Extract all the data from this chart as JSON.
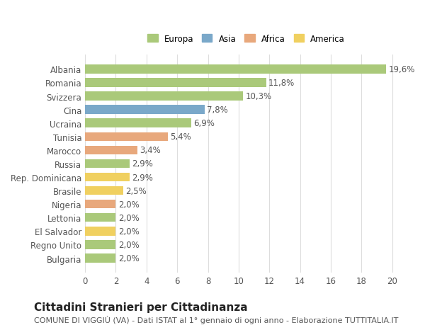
{
  "countries": [
    "Albania",
    "Romania",
    "Svizzera",
    "Cina",
    "Ucraina",
    "Tunisia",
    "Marocco",
    "Russia",
    "Rep. Dominicana",
    "Brasile",
    "Nigeria",
    "Lettonia",
    "El Salvador",
    "Regno Unito",
    "Bulgaria"
  ],
  "values": [
    19.6,
    11.8,
    10.3,
    7.8,
    6.9,
    5.4,
    3.4,
    2.9,
    2.9,
    2.5,
    2.0,
    2.0,
    2.0,
    2.0,
    2.0
  ],
  "labels": [
    "19,6%",
    "11,8%",
    "10,3%",
    "7,8%",
    "6,9%",
    "5,4%",
    "3,4%",
    "2,9%",
    "2,9%",
    "2,5%",
    "2,0%",
    "2,0%",
    "2,0%",
    "2,0%",
    "2,0%"
  ],
  "continents": [
    "Europa",
    "Europa",
    "Europa",
    "Asia",
    "Europa",
    "Africa",
    "Africa",
    "Europa",
    "America",
    "America",
    "Africa",
    "Europa",
    "America",
    "Europa",
    "Europa"
  ],
  "colors": {
    "Europa": "#aac97a",
    "Asia": "#7aa8c9",
    "Africa": "#e8a87c",
    "America": "#f0d060"
  },
  "legend_order": [
    "Europa",
    "Asia",
    "Africa",
    "America"
  ],
  "title": "Cittadini Stranieri per Cittadinanza",
  "subtitle": "COMUNE DI VIGGIÙ (VA) - Dati ISTAT al 1° gennaio di ogni anno - Elaborazione TUTTITALIA.IT",
  "xlim": [
    0,
    21
  ],
  "xticks": [
    0,
    2,
    4,
    6,
    8,
    10,
    12,
    14,
    16,
    18,
    20
  ],
  "background_color": "#ffffff",
  "bar_height": 0.65,
  "grid_color": "#dddddd",
  "label_fontsize": 8.5,
  "tick_fontsize": 8.5,
  "title_fontsize": 11,
  "subtitle_fontsize": 8
}
